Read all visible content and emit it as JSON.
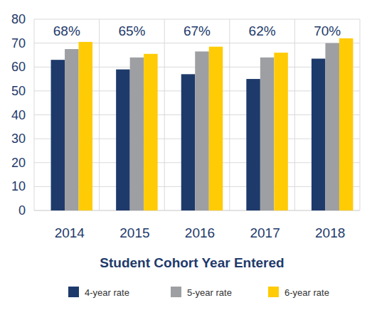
{
  "chart_data": {
    "type": "bar",
    "x_label": "Student Cohort Year Entered",
    "categories": [
      "2014",
      "2015",
      "2016",
      "2017",
      "2018"
    ],
    "annotations": [
      "68%",
      "65%",
      "67%",
      "62%",
      "70%"
    ],
    "series": [
      {
        "name": "4-year rate",
        "color": "#1e3a6b",
        "values": [
          63,
          59,
          57,
          55,
          63.5
        ]
      },
      {
        "name": "5-year rate",
        "color": "#9e9fa3",
        "values": [
          67.5,
          64,
          66.5,
          64,
          70
        ]
      },
      {
        "name": "6-year rate",
        "color": "#ffcb05",
        "values": [
          70.5,
          65.5,
          68.5,
          66,
          72
        ]
      }
    ],
    "ylim": [
      0,
      80
    ],
    "yticks": [
      0,
      10,
      20,
      30,
      40,
      50,
      60,
      70,
      80
    ],
    "grid": true,
    "legend": "bottom"
  }
}
